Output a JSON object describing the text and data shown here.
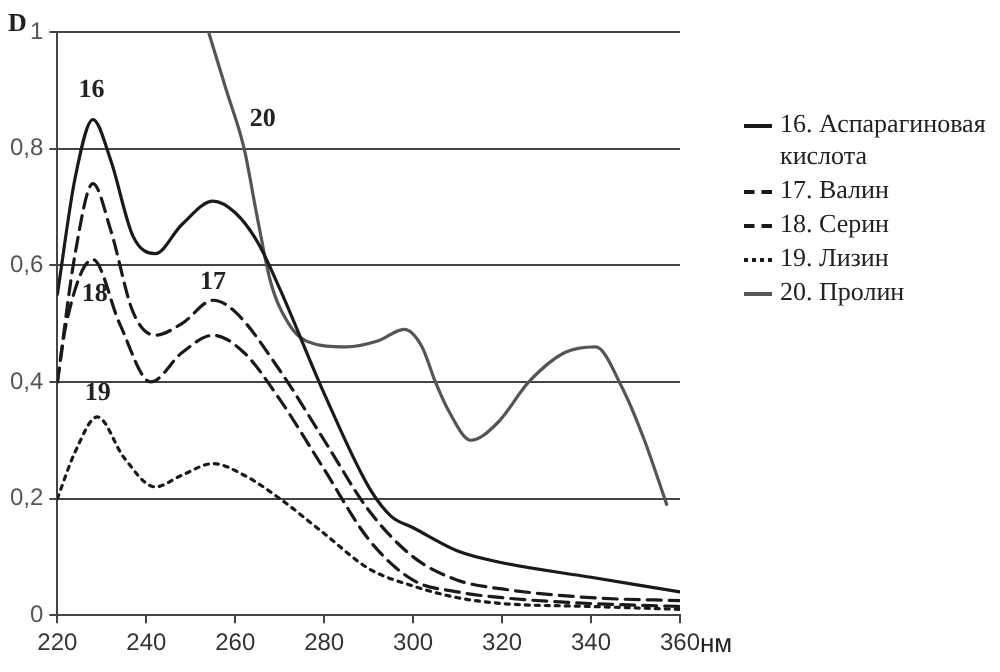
{
  "chart_data": {
    "type": "line",
    "xlabel": "нм",
    "ylabel": "D",
    "xlim": [
      220,
      360
    ],
    "xticks": [
      220,
      240,
      260,
      280,
      300,
      320,
      340,
      360
    ],
    "ylim": [
      0,
      1
    ],
    "yticks": [
      0,
      {
        "value": 0.2,
        "label": "0,2"
      },
      {
        "value": 0.4,
        "label": "0,4"
      },
      {
        "value": 0.6,
        "label": "0,6"
      },
      {
        "value": 0.8,
        "label": "0,8"
      },
      1
    ],
    "grid": "y",
    "legend": "right",
    "marker": "none",
    "series": [
      {
        "name": "16. Аспарагиновая кислота",
        "color": "#1a1a1a",
        "line_style": "solid",
        "x": [
          220,
          224,
          228,
          232,
          237,
          242,
          248,
          255,
          260,
          265,
          270,
          280,
          290,
          295,
          300,
          310,
          320,
          340,
          360
        ],
        "values": [
          0.55,
          0.75,
          0.85,
          0.78,
          0.65,
          0.62,
          0.67,
          0.71,
          0.69,
          0.64,
          0.56,
          0.38,
          0.22,
          0.17,
          0.15,
          0.11,
          0.09,
          0.065,
          0.04
        ]
      },
      {
        "name": "17. Валин",
        "color": "#1a1a1a",
        "line_style": "dashed",
        "x": [
          220,
          224,
          228,
          232,
          237,
          242,
          248,
          255,
          260,
          270,
          280,
          290,
          300,
          310,
          320,
          340,
          360
        ],
        "values": [
          0.4,
          0.62,
          0.74,
          0.66,
          0.52,
          0.48,
          0.5,
          0.54,
          0.52,
          0.42,
          0.3,
          0.18,
          0.1,
          0.06,
          0.045,
          0.03,
          0.025
        ]
      },
      {
        "name": "18. Серин",
        "color": "#1a1a1a",
        "line_style": "dashed",
        "x": [
          220,
          222,
          228,
          234,
          241,
          248,
          255,
          262,
          270,
          280,
          290,
          300,
          310,
          320,
          340,
          360
        ],
        "values": [
          0.4,
          0.5,
          0.61,
          0.5,
          0.4,
          0.45,
          0.48,
          0.45,
          0.37,
          0.25,
          0.13,
          0.06,
          0.04,
          0.03,
          0.02,
          0.015
        ]
      },
      {
        "name": "19. Лизин",
        "color": "#1a1a1a",
        "line_style": "dotted",
        "x": [
          220,
          224,
          229,
          235,
          242,
          248,
          255,
          262,
          270,
          280,
          290,
          300,
          310,
          320,
          340,
          360
        ],
        "values": [
          0.2,
          0.28,
          0.34,
          0.27,
          0.22,
          0.24,
          0.26,
          0.24,
          0.2,
          0.14,
          0.08,
          0.05,
          0.03,
          0.02,
          0.015,
          0.01
        ]
      },
      {
        "name": "20. Пролин",
        "color": "#555555",
        "line_style": "solid",
        "x": [
          254,
          258,
          262,
          265,
          268,
          272,
          276,
          285,
          292,
          298,
          302,
          305,
          308,
          313,
          319,
          326,
          334,
          341,
          347,
          352,
          357
        ],
        "values": [
          1,
          0.9,
          0.8,
          0.68,
          0.57,
          0.5,
          0.47,
          0.46,
          0.47,
          0.49,
          0.46,
          0.4,
          0.35,
          0.3,
          0.33,
          0.4,
          0.45,
          0.46,
          0.39,
          0.3,
          0.19
        ]
      }
    ],
    "annotations": [
      "16",
      "17",
      "18",
      "19",
      "20"
    ]
  }
}
